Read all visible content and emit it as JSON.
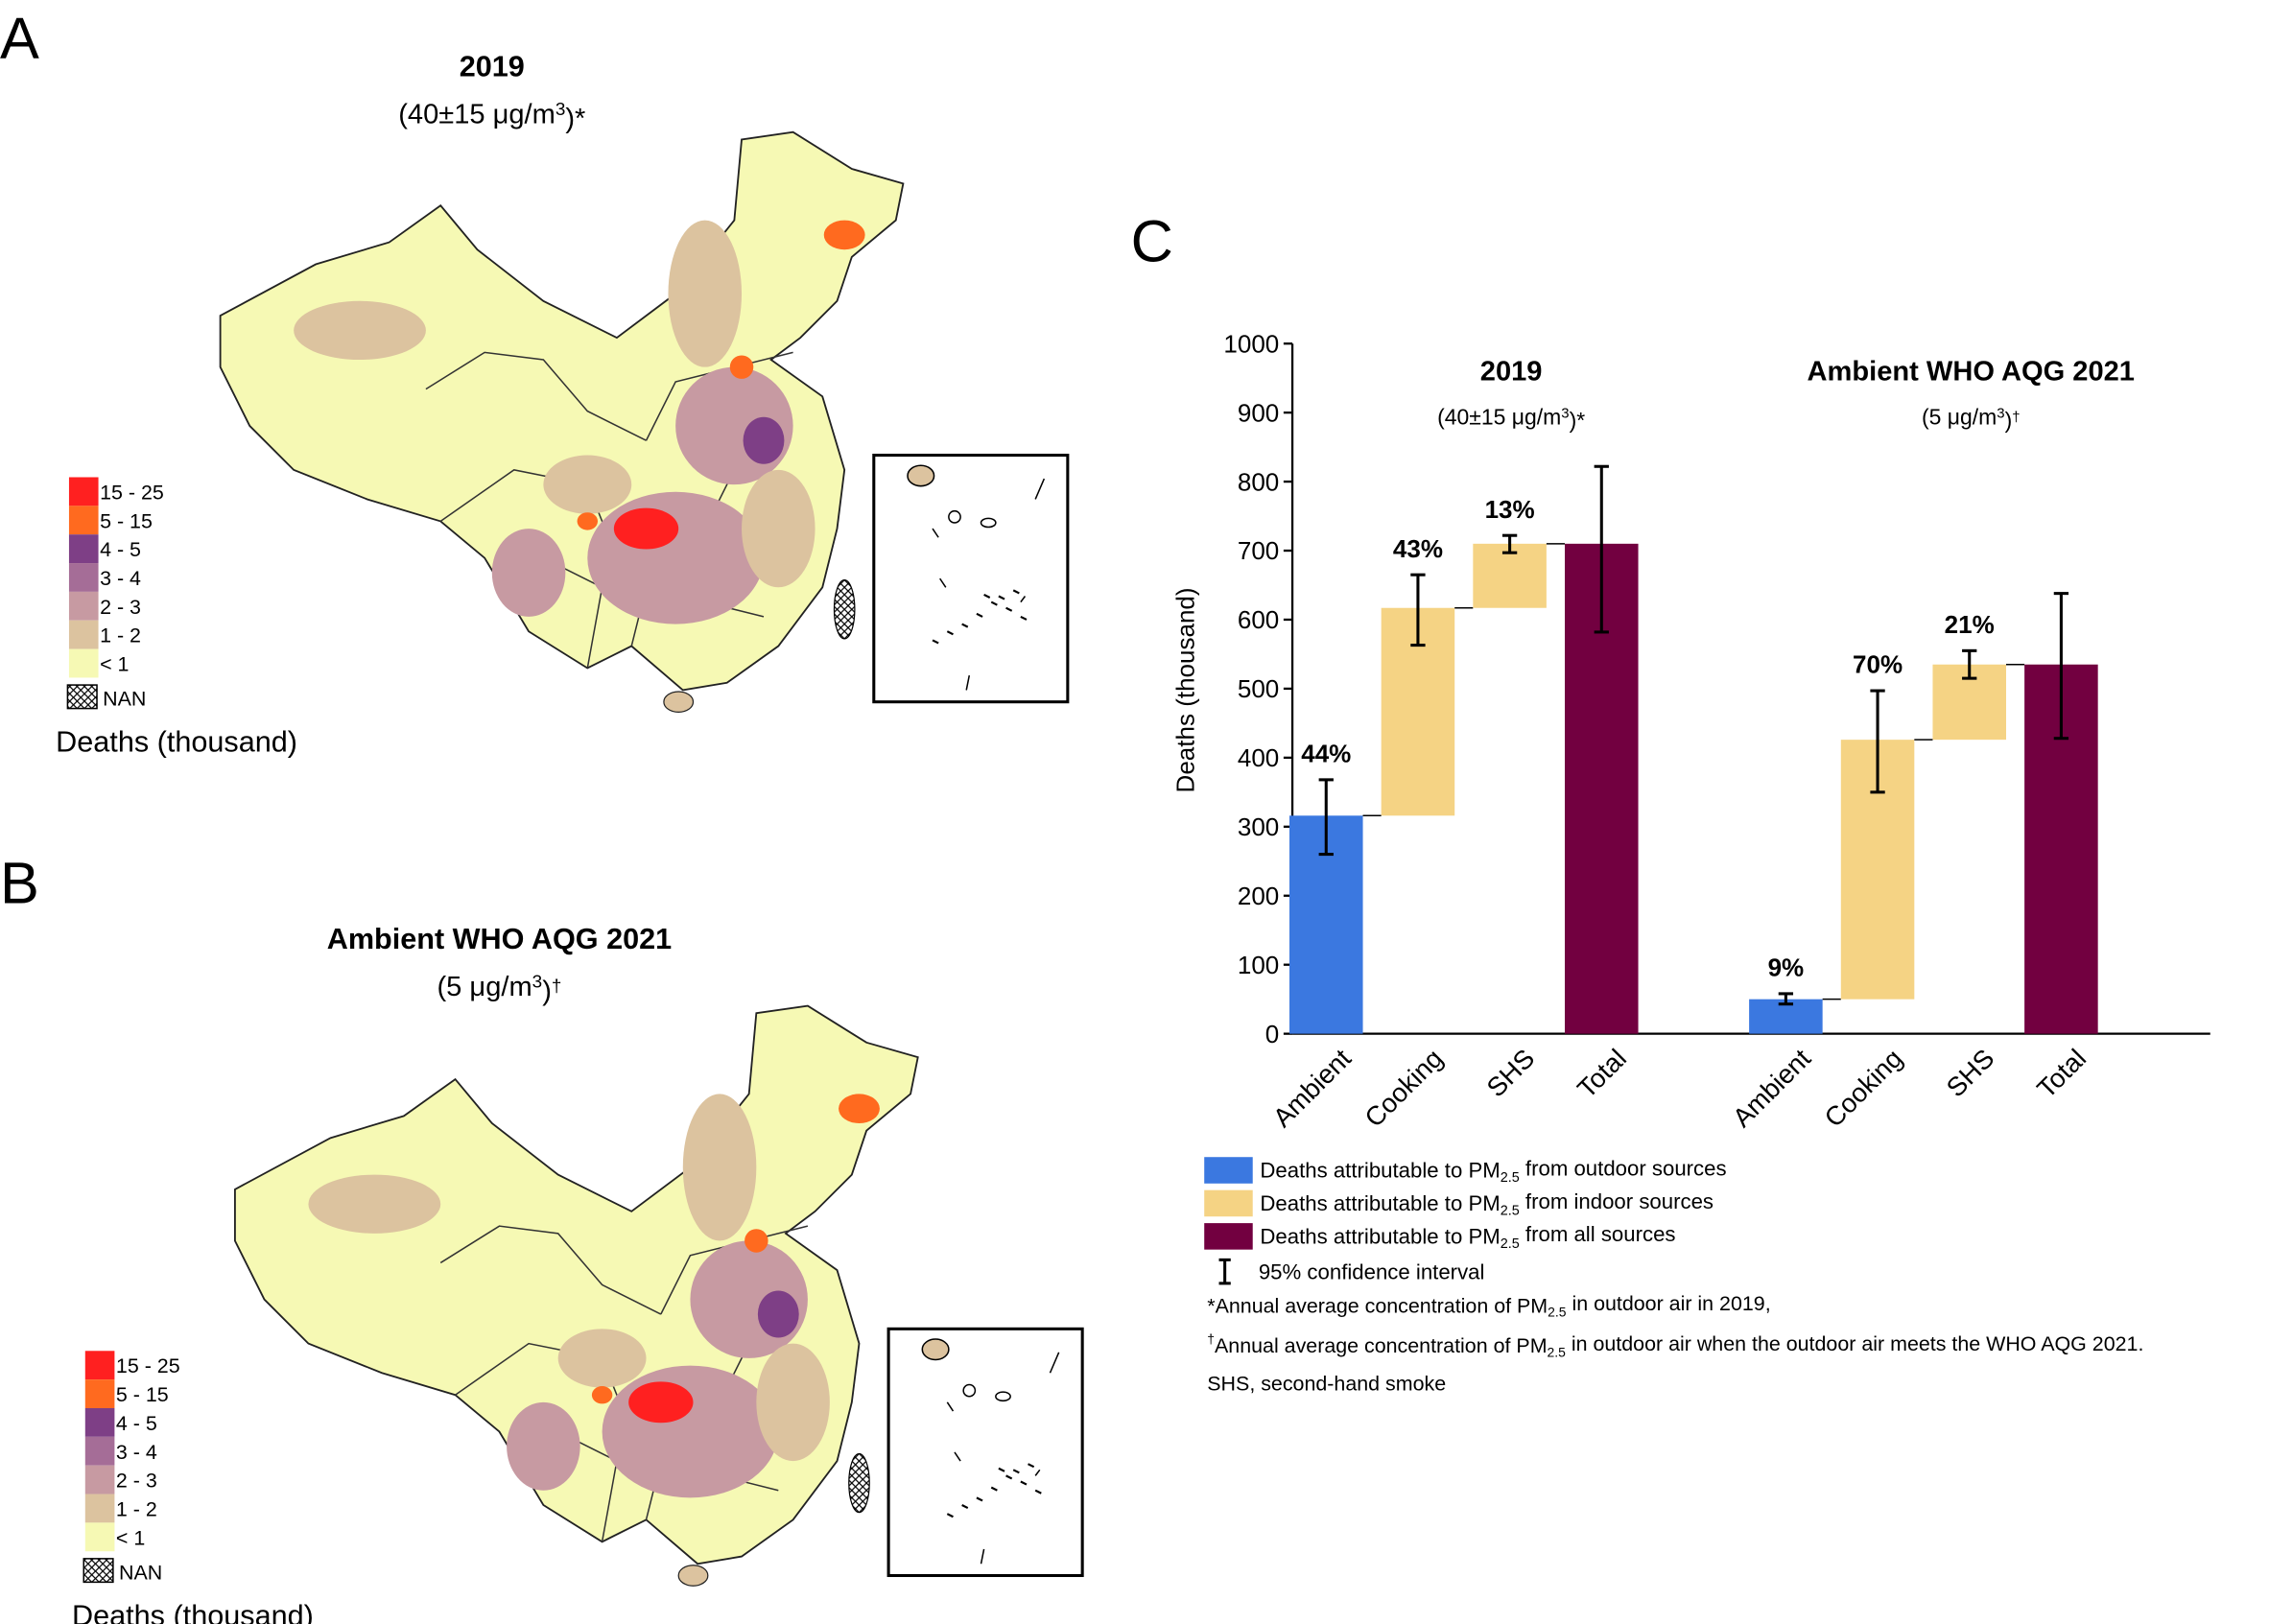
{
  "panels": [
    "A",
    "B",
    "C"
  ],
  "maps": [
    {
      "title": "2019",
      "subtitle": [
        "(40±15 μg/m",
        {
          "sup": "3"
        },
        ")*"
      ],
      "legend": [
        {
          "label": "15 - 25",
          "color": "#ff2020"
        },
        {
          "label": "5 - 15",
          "color": "#ff6a1f"
        },
        {
          "label": "4 - 5",
          "color": "#7e3f86"
        },
        {
          "label": "3 - 4",
          "color": "#a56d97"
        },
        {
          "label": "2 - 3",
          "color": "#c79aa2"
        },
        {
          "label": "1 - 2",
          "color": "#dcc39f"
        },
        {
          "label": "< 1",
          "color": "#f6f9b4"
        }
      ],
      "nan_label": "NAN",
      "legend_title": "Deaths (thousand)"
    },
    {
      "title": "Ambient WHO AQG 2021",
      "subtitle": [
        "(5 μg/m",
        {
          "sup": "3"
        },
        ")",
        {
          "sup": "†"
        }
      ],
      "legend": [
        {
          "label": "15 - 25",
          "color": "#ff2020"
        },
        {
          "label": "5 - 15",
          "color": "#ff6a1f"
        },
        {
          "label": "4 - 5",
          "color": "#7e3f86"
        },
        {
          "label": "3 - 4",
          "color": "#a56d97"
        },
        {
          "label": "2 - 3",
          "color": "#c79aa2"
        },
        {
          "label": "1 - 2",
          "color": "#dcc39f"
        },
        {
          "label": "< 1",
          "color": "#f6f9b4"
        }
      ],
      "nan_label": "NAN",
      "legend_title": "Deaths (thousand)"
    }
  ],
  "chart_data": {
    "type": "waterfall",
    "ylabel": "Deaths (thousand)",
    "ylim": [
      0,
      1000
    ],
    "yticks": [
      0,
      100,
      200,
      300,
      400,
      500,
      600,
      700,
      800,
      900,
      1000
    ],
    "groups": [
      {
        "title": "2019",
        "subtitle": [
          "(40±15 μg/m",
          {
            "sup": "3"
          },
          ")*"
        ],
        "categories": [
          "Ambient",
          "Cooking",
          "SHS",
          "Total"
        ],
        "values": [
          316,
          301,
          93,
          710
        ],
        "is_total": [
          false,
          false,
          false,
          true
        ],
        "colors": [
          "#3b78e0",
          "#f5d384",
          "#f5d384",
          "#720040"
        ],
        "ci_low": [
          260,
          563,
          697,
          582
        ],
        "ci_high": [
          368,
          665,
          722,
          822
        ],
        "shares": [
          {
            "value": 44,
            "label": "44%"
          },
          {
            "value": 43,
            "label": "43%"
          },
          {
            "value": 13,
            "label": "13%"
          },
          null
        ]
      },
      {
        "title": "Ambient WHO AQG 2021",
        "subtitle": [
          "(5 μg/m",
          {
            "sup": "3"
          },
          ")",
          {
            "sup": "†"
          }
        ],
        "categories": [
          "Ambient",
          "Cooking",
          "SHS",
          "Total"
        ],
        "values": [
          50,
          376,
          109,
          535
        ],
        "is_total": [
          false,
          false,
          false,
          true
        ],
        "colors": [
          "#3b78e0",
          "#f5d384",
          "#f5d384",
          "#720040"
        ],
        "ci_low": [
          43,
          350,
          515,
          428
        ],
        "ci_high": [
          58,
          497,
          555,
          638
        ],
        "shares": [
          {
            "value": 9,
            "label": "9%"
          },
          {
            "value": 70,
            "label": "70%"
          },
          {
            "value": 21,
            "label": "21%"
          },
          null
        ]
      }
    ],
    "legend": [
      {
        "color": "#3b78e0",
        "text": [
          "Deaths attributable to PM",
          {
            "sub": "2.5"
          },
          " from outdoor sources"
        ]
      },
      {
        "color": "#f5d384",
        "text": [
          "Deaths attributable to PM",
          {
            "sub": "2.5"
          },
          " from indoor sources"
        ]
      },
      {
        "color": "#720040",
        "text": [
          "Deaths attributable to PM",
          {
            "sub": "2.5"
          },
          " from all sources"
        ]
      }
    ],
    "ci_legend": "95% confidence interval",
    "footnotes": [
      [
        "*Annual average concentration of PM",
        {
          "sub": "2.5"
        },
        " in outdoor air in 2019,"
      ],
      [
        {
          "sup": "†"
        },
        "Annual average concentration of PM",
        {
          "sub": "2.5"
        },
        " in outdoor air when the outdoor air meets the WHO AQG 2021."
      ],
      [
        "SHS, second-hand smoke"
      ]
    ]
  }
}
